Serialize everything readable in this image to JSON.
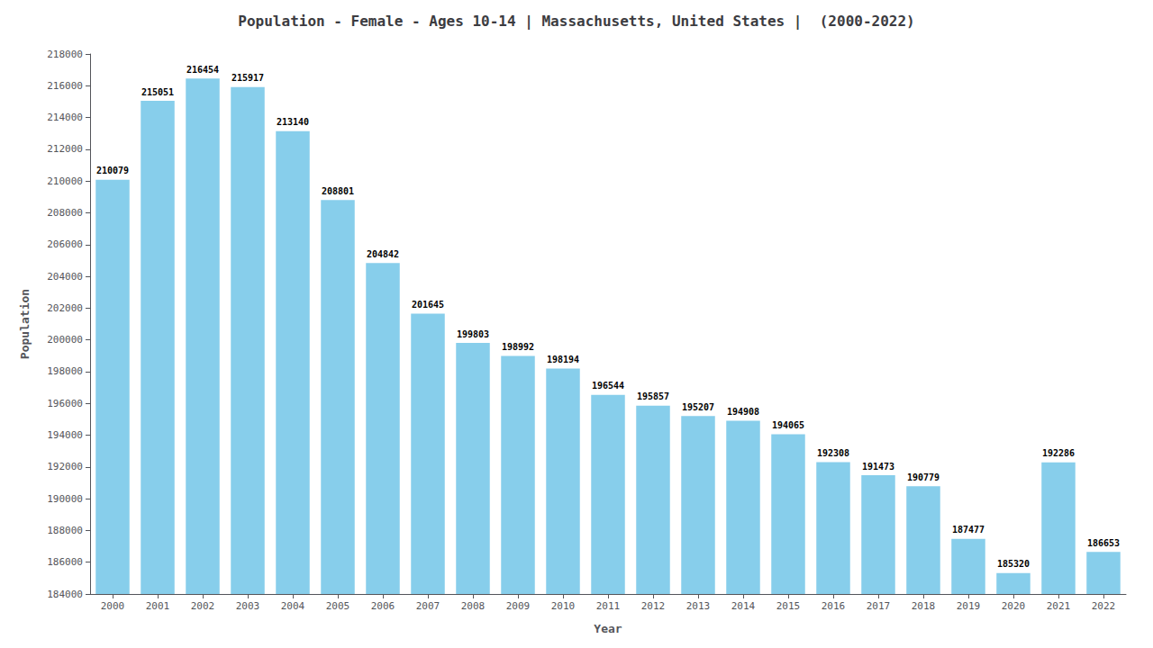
{
  "chart_data": {
    "type": "bar",
    "title": "Population - Female - Ages 10-14 | Massachusetts, United States |  (2000-2022)",
    "xlabel": "Year",
    "ylabel": "Population",
    "categories": [
      "2000",
      "2001",
      "2002",
      "2003",
      "2004",
      "2005",
      "2006",
      "2007",
      "2008",
      "2009",
      "2010",
      "2011",
      "2012",
      "2013",
      "2014",
      "2015",
      "2016",
      "2017",
      "2018",
      "2019",
      "2020",
      "2021",
      "2022"
    ],
    "values": [
      210079,
      215051,
      216454,
      215917,
      213140,
      208801,
      204842,
      201645,
      199803,
      198992,
      198194,
      196544,
      195857,
      195207,
      194908,
      194065,
      192308,
      191473,
      190779,
      187477,
      185320,
      192286,
      186653
    ],
    "color": "#87CEEB",
    "ylim": [
      184000,
      218000
    ],
    "yticks": [
      184000,
      186000,
      188000,
      190000,
      192000,
      194000,
      196000,
      198000,
      200000,
      202000,
      204000,
      206000,
      208000,
      210000,
      212000,
      214000,
      216000,
      218000
    ],
    "grid": false,
    "data_labels": true
  }
}
